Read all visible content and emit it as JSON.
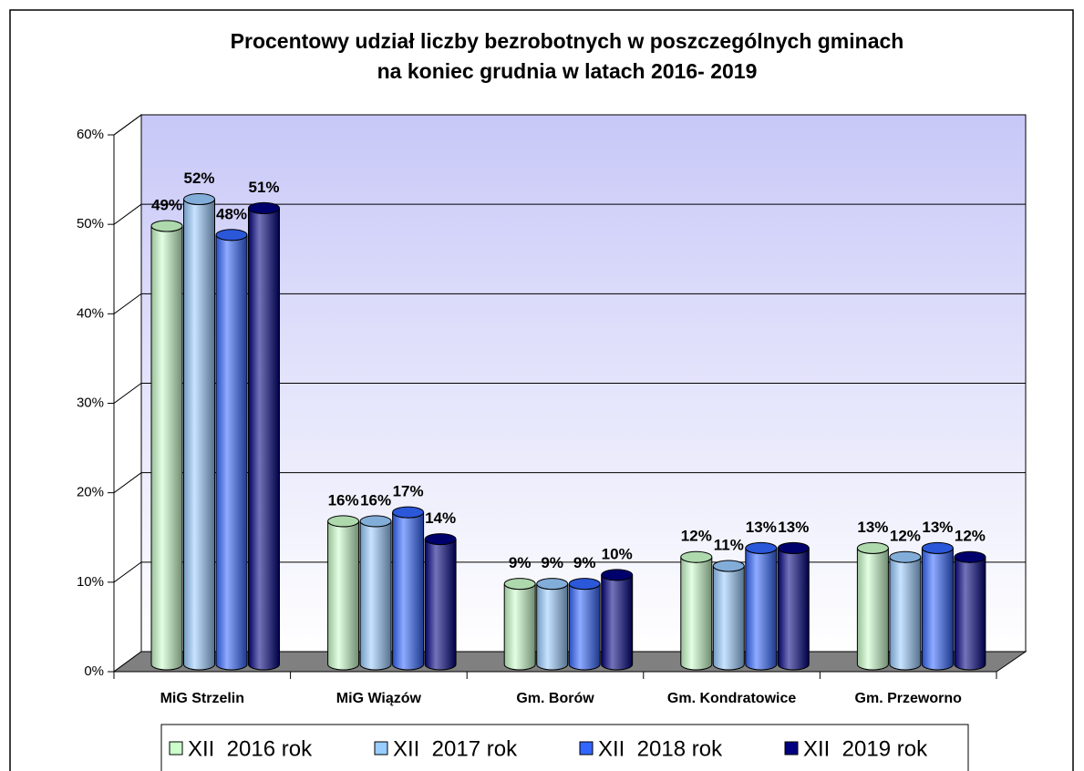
{
  "chart_data": {
    "type": "bar3d",
    "title": [
      "Procentowy udział liczby bezrobotnych w poszczególnych gminach",
      "na koniec  grudnia w latach 2016- 2019"
    ],
    "categories": [
      "MiG Strzelin",
      "MiG Wiązów",
      "Gm. Borów",
      "Gm. Kondratowice",
      "Gm. Przeworno"
    ],
    "series": [
      {
        "name": "XII  2016 rok",
        "color": "#ccffcc",
        "values": [
          49,
          16,
          9,
          12,
          13
        ],
        "value_labels": [
          "49%",
          "16%",
          "9%",
          "12%",
          "13%"
        ]
      },
      {
        "name": "XII  2017 rok",
        "color": "#99ccff",
        "values": [
          52,
          16,
          9,
          11,
          12
        ],
        "value_labels": [
          "52%",
          "16%",
          "9%",
          "11%",
          "12%"
        ]
      },
      {
        "name": "XII  2018 rok",
        "color": "#3366ff",
        "values": [
          48,
          17,
          9,
          13,
          13
        ],
        "value_labels": [
          "48%",
          "17%",
          "9%",
          "13%",
          "13%"
        ]
      },
      {
        "name": "XII  2019 rok",
        "color": "#000080",
        "values": [
          51,
          14,
          10,
          13,
          12
        ],
        "value_labels": [
          "51%",
          "14%",
          "10%",
          "13%",
          "12%"
        ]
      }
    ],
    "ylim": [
      0,
      60
    ],
    "yticks": [
      {
        "value": 0,
        "label": "0%"
      },
      {
        "value": 10,
        "label": "10%"
      },
      {
        "value": 20,
        "label": "20%"
      },
      {
        "value": 30,
        "label": "30%"
      },
      {
        "value": 40,
        "label": "40%"
      },
      {
        "value": 50,
        "label": "50%"
      },
      {
        "value": 60,
        "label": "60%"
      }
    ],
    "grid": true,
    "legend": "bottom"
  }
}
